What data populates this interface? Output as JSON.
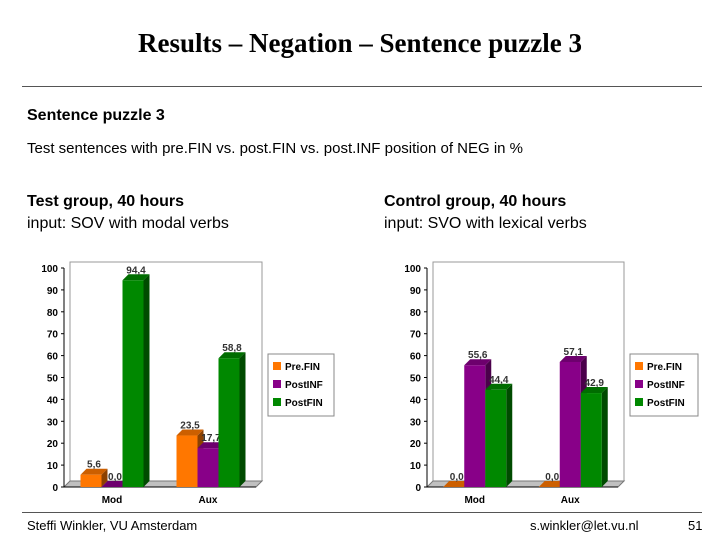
{
  "slide": {
    "title": "Results – Negation – Sentence puzzle 3",
    "heading": "Sentence puzzle 3",
    "subheading": "Test sentences with pre.FIN vs. post.FIN vs. post.INF position of NEG in %",
    "footer_left": "Steffi Winkler, VU Amsterdam",
    "footer_right": "s.winkler@let.vu.nl",
    "page_number": "51"
  },
  "groups": [
    {
      "title": "Test group, 40 hours",
      "subtitle": "input: SOV with modal verbs"
    },
    {
      "title": "Control group, 40 hours",
      "subtitle": "input: SVO with lexical verbs"
    }
  ],
  "colors": {
    "PreFIN": "#ff7700",
    "PostINF": "#880088",
    "PostFIN": "#008800",
    "axis": "#000000",
    "plot_bg": "#ffffff"
  },
  "chart_data": [
    {
      "type": "bar",
      "categories": [
        "Mod",
        "Aux"
      ],
      "series": [
        {
          "name": "Pre.FIN",
          "values": [
            5.6,
            23.5
          ]
        },
        {
          "name": "PostINF",
          "values": [
            0.0,
            17.7
          ]
        },
        {
          "name": "PostFIN",
          "values": [
            94.4,
            58.8
          ]
        }
      ],
      "data_labels": [
        [
          "5,6",
          "23,5"
        ],
        [
          "0,0",
          "17,7"
        ],
        [
          "94,4",
          "58,8"
        ]
      ],
      "ylim": [
        0,
        100
      ],
      "yticks": [
        "0",
        "10",
        "20",
        "30",
        "40",
        "50",
        "60",
        "70",
        "80",
        "90",
        "100"
      ],
      "legend": "right",
      "grid": false
    },
    {
      "type": "bar",
      "categories": [
        "Mod",
        "Aux"
      ],
      "series": [
        {
          "name": "Pre.FIN",
          "values": [
            0.0,
            0.0
          ]
        },
        {
          "name": "PostINF",
          "values": [
            55.6,
            57.1
          ]
        },
        {
          "name": "PostFIN",
          "values": [
            44.4,
            42.9
          ]
        }
      ],
      "data_labels": [
        [
          "0,0",
          "0,0"
        ],
        [
          "55,6",
          "57,1"
        ],
        [
          "44,4",
          "42,9"
        ]
      ],
      "ylim": [
        0,
        100
      ],
      "yticks": [
        "0",
        "10",
        "20",
        "30",
        "40",
        "50",
        "60",
        "70",
        "80",
        "90",
        "100"
      ],
      "legend": "right",
      "grid": false
    }
  ]
}
